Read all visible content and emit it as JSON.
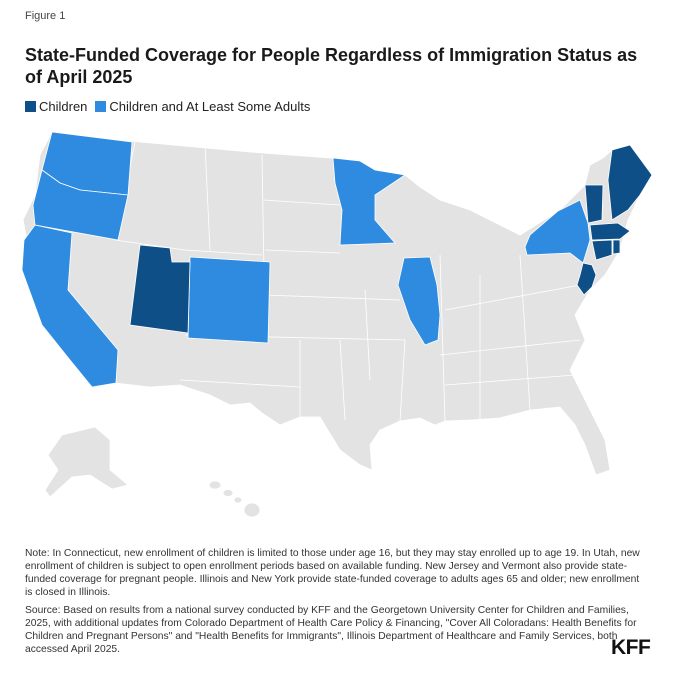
{
  "figure_label": "Figure 1",
  "title": "State-Funded Coverage for People Regardless of Immigration Status as of April 2025",
  "legend": [
    {
      "label": "Children",
      "color": "#0e4f88"
    },
    {
      "label": "Children and At Least Some Adults",
      "color": "#2f8be0"
    }
  ],
  "colors": {
    "no_coverage": "#e3e3e3",
    "children": "#0e4f88",
    "children_and_adults": "#2f8be0"
  },
  "map_data": {
    "children": [
      "Utah",
      "Vermont",
      "Maine",
      "Massachusetts",
      "Connecticut",
      "Rhode Island",
      "New Jersey"
    ],
    "children_and_adults": [
      "Washington",
      "Oregon",
      "California",
      "Colorado",
      "Minnesota",
      "Illinois",
      "New York"
    ]
  },
  "note": "Note: In Connecticut, new enrollment of children is limited to those under age 16, but they may stay enrolled up to age 19. In Utah, new enrollment of children is subject to open enrollment periods based on available funding. New Jersey and Vermont also provide state-funded coverage for pregnant people. Illinois and New York provide state-funded coverage to adults ages 65 and older; new enrollment is closed in Illinois.",
  "source": "Source: Based on results from a national survey conducted by KFF and the Georgetown University Center for Children and Families, 2025, with additional updates from Colorado Department of Health Care Policy & Financing, \"Cover All Coloradans: Health Benefits for Children and Pregnant Persons\" and \"Health Benefits for Immigrants\", Illinois Department of Healthcare and Family Services, both accessed April 2025.",
  "logo": "KFF"
}
